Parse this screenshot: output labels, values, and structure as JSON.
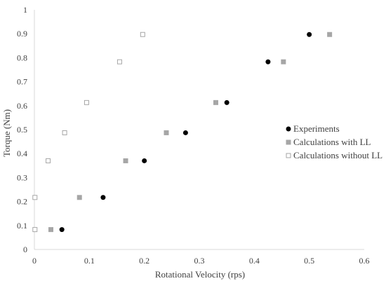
{
  "chart_data": {
    "type": "scatter",
    "xlabel": "Rotational Velocity (rps)",
    "ylabel": "Torque (Nm)",
    "xlim": [
      0,
      0.6
    ],
    "ylim": [
      0,
      1
    ],
    "x_ticks": [
      0,
      0.1,
      0.2,
      0.3,
      0.4,
      0.5,
      0.6
    ],
    "y_ticks": [
      0,
      0.1,
      0.2,
      0.3,
      0.4,
      0.5,
      0.6,
      0.7,
      0.8,
      0.9,
      1
    ],
    "x_tick_labels": [
      "0",
      "0.1",
      "0.2",
      "0.3",
      "0.4",
      "0.5",
      "0.6"
    ],
    "y_tick_labels": [
      "0",
      "0.1",
      "0.2",
      "0.3",
      "0.4",
      "0.5",
      "0.6",
      "0.7",
      "0.8",
      "0.9",
      "1"
    ],
    "grid": false,
    "legend_position": "right",
    "series": [
      {
        "name": "Experiments",
        "marker": "circle",
        "color": "#000000",
        "points": [
          [
            0.05,
            0.083
          ],
          [
            0.125,
            0.217
          ],
          [
            0.2,
            0.37
          ],
          [
            0.275,
            0.487
          ],
          [
            0.35,
            0.613
          ],
          [
            0.425,
            0.783
          ],
          [
            0.5,
            0.897
          ]
        ]
      },
      {
        "name": "Calculations with LL",
        "marker": "square-filled",
        "color": "#a6a6a6",
        "points": [
          [
            0.03,
            0.083
          ],
          [
            0.082,
            0.217
          ],
          [
            0.166,
            0.37
          ],
          [
            0.24,
            0.487
          ],
          [
            0.33,
            0.613
          ],
          [
            0.453,
            0.783
          ],
          [
            0.537,
            0.897
          ]
        ]
      },
      {
        "name": "Calculations without LL",
        "marker": "square-open",
        "color": "#a6a6a6",
        "points": [
          [
            0.001,
            0.083
          ],
          [
            0.001,
            0.217
          ],
          [
            0.025,
            0.37
          ],
          [
            0.055,
            0.487
          ],
          [
            0.095,
            0.613
          ],
          [
            0.155,
            0.783
          ],
          [
            0.197,
            0.897
          ]
        ]
      }
    ]
  }
}
